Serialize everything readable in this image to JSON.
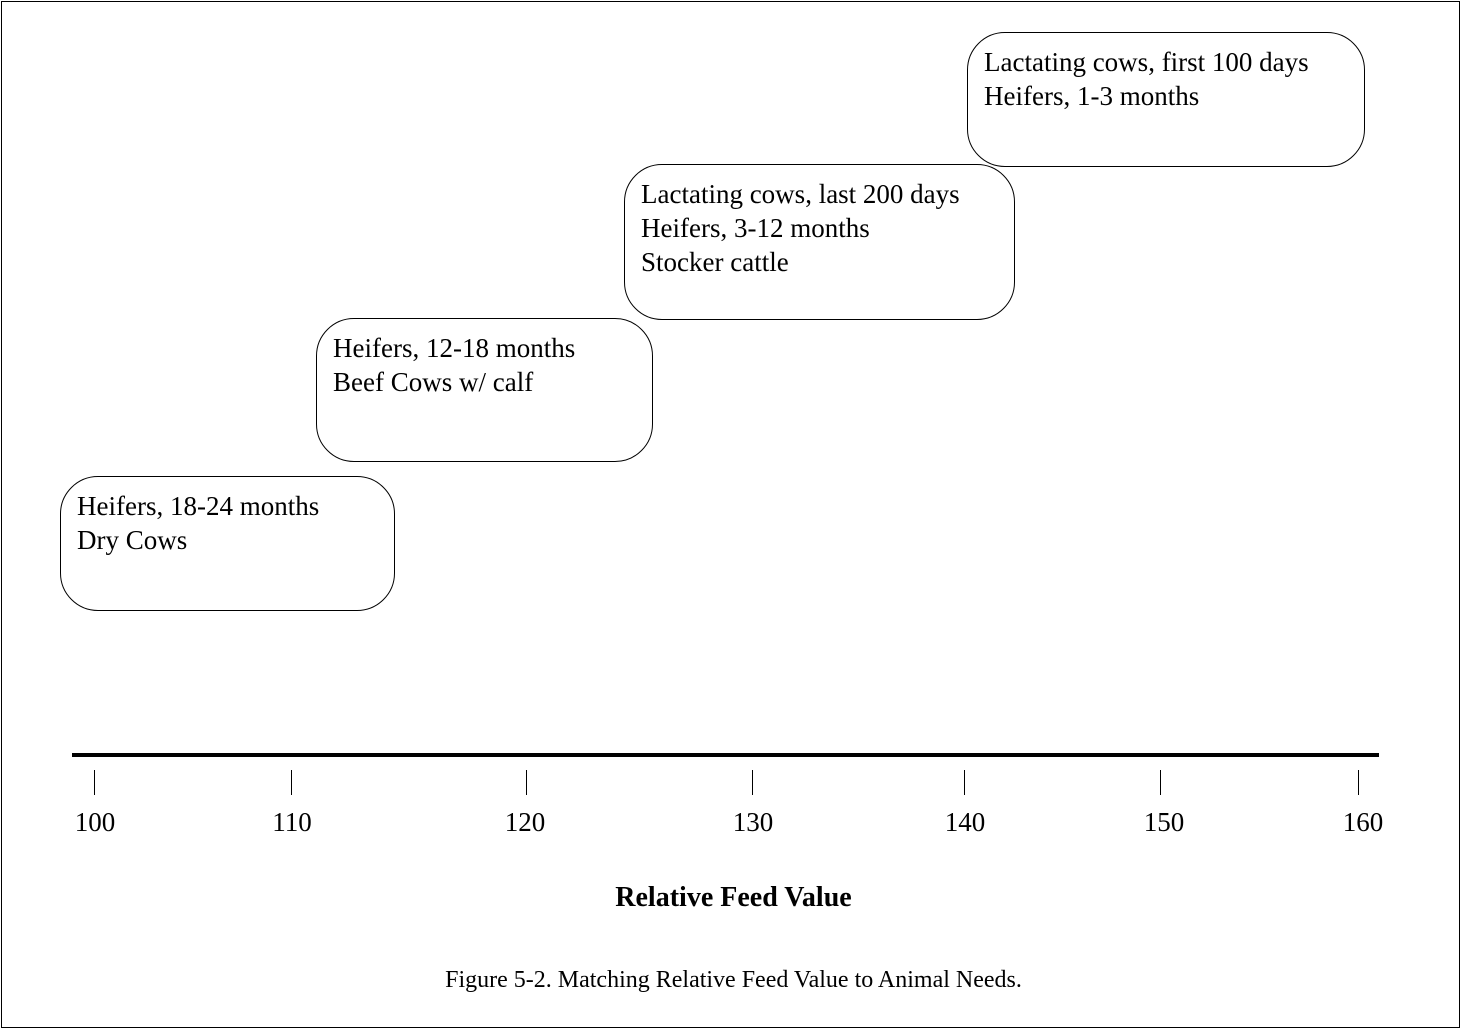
{
  "groups": [
    {
      "lines": [
        "Heifers, 18-24 months",
        "Dry Cows"
      ]
    },
    {
      "lines": [
        "Heifers, 12-18 months",
        "Beef Cows w/ calf"
      ]
    },
    {
      "lines": [
        "Lactating cows, last 200 days",
        "Heifers, 3-12 months",
        "Stocker cattle"
      ]
    },
    {
      "lines": [
        "Lactating cows, first 100 days",
        "Heifers, 1-3 months"
      ]
    }
  ],
  "axis": {
    "ticks": [
      "100",
      "110",
      "120",
      "130",
      "140",
      "150",
      "160"
    ],
    "title": "Relative Feed Value"
  },
  "caption": "Figure 5-2.  Matching Relative Feed Value to Animal Needs."
}
